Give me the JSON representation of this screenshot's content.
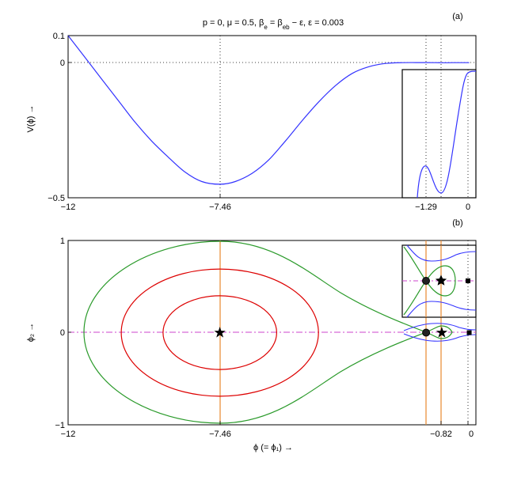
{
  "chart_data": [
    {
      "type": "line",
      "panel_label": "(a)",
      "title": "p = 0, μ = 0.5, β_e = β_eb − ε, ε = 0.003",
      "ylabel": "V(ϕ) →",
      "xlabel": "",
      "xlim": [
        -12,
        0.2
      ],
      "ylim": [
        -0.5,
        0.1
      ],
      "xticks": [
        -12,
        -7.46,
        -1.29,
        0
      ],
      "yticks": [
        0.1,
        0,
        -0.5
      ],
      "xtick_labels": [
        "−12",
        "−7.46",
        "−1.29",
        "0"
      ],
      "ytick_labels": [
        "0.1",
        "0",
        "−0.5"
      ],
      "reference_lines": {
        "horizontal": [
          0
        ],
        "vertical": [
          -7.46,
          -1.29,
          -0.82
        ]
      },
      "series": [
        {
          "color": "#3333ff",
          "x": [
            -12,
            -11.5,
            -11,
            -10.5,
            -10,
            -9.5,
            -9,
            -8.5,
            -8,
            -7.46,
            -7,
            -6.5,
            -6,
            -5.5,
            -5,
            -4.5,
            -4,
            -3.5,
            -3,
            -2.5,
            -2,
            -1.5,
            -1.29,
            -1,
            -0.82,
            -0.5,
            0
          ],
          "y": [
            0.1,
            0.02,
            -0.06,
            -0.14,
            -0.22,
            -0.29,
            -0.35,
            -0.405,
            -0.44,
            -0.45,
            -0.44,
            -0.41,
            -0.36,
            -0.29,
            -0.215,
            -0.145,
            -0.085,
            -0.04,
            -0.015,
            -0.003,
            0,
            0.0001,
            0.0001,
            0.0,
            -0.0005,
            -0.0002,
            0
          ]
        }
      ],
      "inset": {
        "description_x": [
          -1.6,
          0.2
        ],
        "vertical_lines": [
          -1.29,
          -0.82,
          0
        ]
      }
    },
    {
      "type": "line",
      "panel_label": "(b)",
      "xlabel": "ϕ (= ϕ₁) →",
      "ylabel": "ϕ₂ →",
      "xlim": [
        -12,
        0.2
      ],
      "ylim": [
        -1,
        1
      ],
      "xticks": [
        -12,
        -7.46,
        -0.82,
        0
      ],
      "yticks": [
        1,
        0,
        -1
      ],
      "xtick_labels": [
        "−12",
        "−7.46",
        "−0.82",
        "0"
      ],
      "ytick_labels": [
        "1",
        "0",
        "−1"
      ],
      "vertical_lines": [
        -7.46,
        -1.29,
        -0.82
      ],
      "horizontal_line": 0,
      "markers": [
        {
          "kind": "star",
          "x": -7.46,
          "y": 0
        },
        {
          "kind": "star",
          "x": -0.82,
          "y": 0
        },
        {
          "kind": "circle",
          "x": -1.29,
          "y": 0
        },
        {
          "kind": "square",
          "x": 0,
          "y": 0
        }
      ],
      "orbits": [
        {
          "color": "#dd0000",
          "center": -7.46,
          "rx": 1.7,
          "ry": 0.4
        },
        {
          "color": "#dd0000",
          "center": -7.46,
          "rx": 2.95,
          "ry": 0.69
        },
        {
          "color": "#2a9a2a",
          "kind": "separatrix",
          "left_x": -11.6,
          "top_y": 0.99
        },
        {
          "color": "#3333ff",
          "kind": "outer-flow"
        }
      ]
    }
  ]
}
